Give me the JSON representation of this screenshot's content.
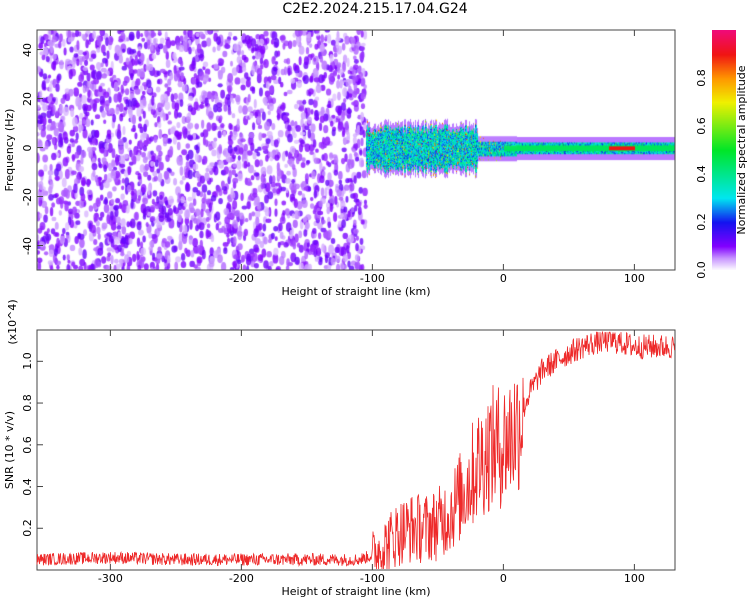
{
  "title": "C2E2.2024.215.17.04.G24",
  "chart_data": [
    {
      "type": "heatmap",
      "title": "C2E2.2024.215.17.04.G24",
      "xlabel": "Height of straight line (km)",
      "ylabel": "Frequency (Hz)",
      "xlim": [
        -356,
        131
      ],
      "ylim": [
        -50,
        48
      ],
      "xticks": [
        -300,
        -200,
        -100,
        0,
        100
      ],
      "yticks": [
        -40,
        -20,
        0,
        20,
        40
      ],
      "colorbar": {
        "label": "Normalized spectral amplitude",
        "ticks": [
          "0.0",
          "0.2",
          "0.4",
          "0.6",
          "0.8"
        ],
        "range": [
          0,
          1
        ]
      },
      "description_regions": [
        {
          "x_range": [
            -356,
            -105
          ],
          "content": "broadband noise, amplitude ~0.05-0.15"
        },
        {
          "x_range": [
            -105,
            131
          ],
          "content": "signal band near 0 Hz, narrowing from ~±8 Hz to ~±2 Hz, amplitude 0.3-0.9"
        }
      ]
    },
    {
      "type": "line",
      "xlabel": "Height of straight line (km)",
      "ylabel": "SNR (10 * v/v)",
      "y_multiplier": "(x10^4)",
      "xlim": [
        -356,
        131
      ],
      "ylim": [
        0,
        1.15
      ],
      "xticks": [
        -300,
        -200,
        -100,
        0,
        100
      ],
      "yticks": [
        "0.2",
        "0.4",
        "0.6",
        "0.8",
        "1.0"
      ],
      "series": [
        {
          "name": "SNR",
          "color": "#ee2a2a",
          "x": [
            -356,
            -300,
            -250,
            -200,
            -150,
            -110,
            -100,
            -90,
            -80,
            -70,
            -60,
            -50,
            -40,
            -30,
            -20,
            -10,
            0,
            10,
            20,
            30,
            40,
            50,
            60,
            70,
            80,
            90,
            100,
            110,
            120,
            131
          ],
          "y": [
            0.05,
            0.06,
            0.05,
            0.05,
            0.05,
            0.05,
            0.07,
            0.12,
            0.18,
            0.2,
            0.2,
            0.22,
            0.28,
            0.38,
            0.5,
            0.58,
            0.6,
            0.68,
            0.85,
            0.96,
            1.0,
            1.04,
            1.07,
            1.09,
            1.1,
            1.09,
            1.07,
            1.07,
            1.07,
            1.07
          ]
        }
      ]
    }
  ]
}
